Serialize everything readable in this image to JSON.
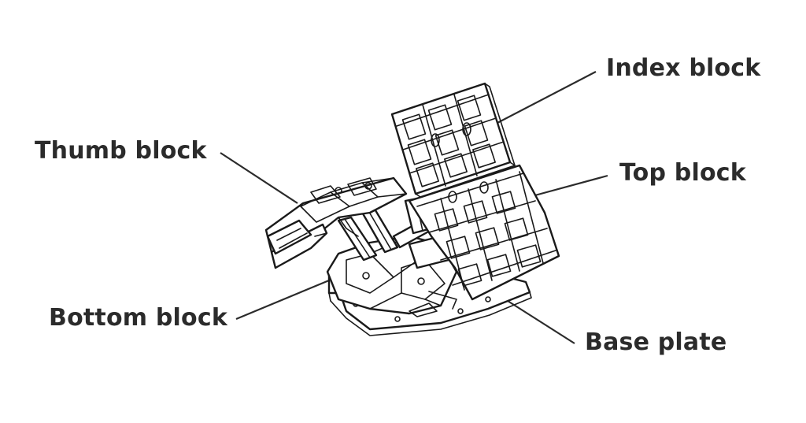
{
  "diagram": {
    "labels": {
      "index_block": "Index block",
      "thumb_block": "Thumb block",
      "top_block": "Top block",
      "bottom_block": "Bottom block",
      "base_plate": "Base plate"
    },
    "colors": {
      "ink": "#1a1a1a",
      "text": "#2b2b2b",
      "background": "#ffffff"
    }
  }
}
